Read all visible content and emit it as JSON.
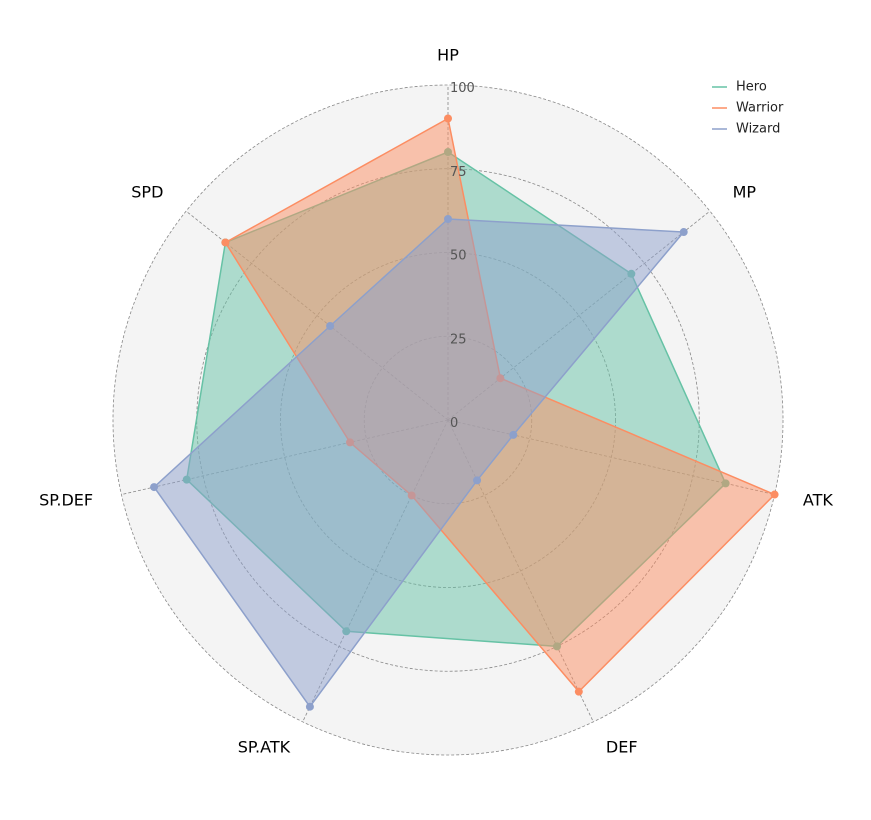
{
  "chart_data": {
    "type": "radar",
    "axes": [
      "HP",
      "MP",
      "ATK",
      "DEF",
      "SP.ATK",
      "SP.DEF",
      "SPD"
    ],
    "radial_ticks": [
      0,
      25,
      50,
      75,
      100
    ],
    "rlim": [
      0,
      100
    ],
    "grid": true,
    "legend": "top-right",
    "series": [
      {
        "name": "Hero",
        "color": "#66c2a5",
        "values": [
          80,
          70,
          85,
          75,
          70,
          80,
          85
        ]
      },
      {
        "name": "Warrior",
        "color": "#fc8d62",
        "values": [
          90,
          20,
          100,
          90,
          25,
          30,
          85
        ]
      },
      {
        "name": "Wizard",
        "color": "#8da0cb",
        "values": [
          60,
          90,
          20,
          20,
          95,
          90,
          45
        ]
      }
    ]
  }
}
